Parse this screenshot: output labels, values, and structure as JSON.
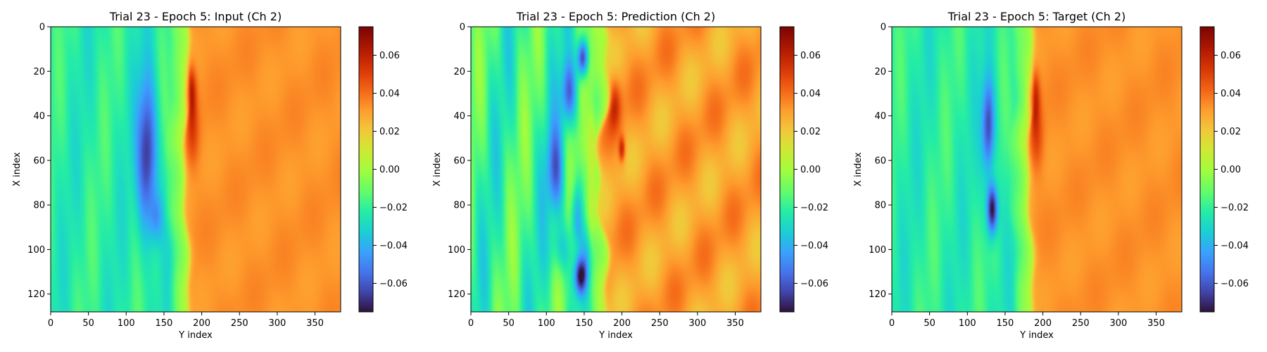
{
  "chart_data": [
    {
      "type": "heatmap",
      "title": "Trial 23 - Epoch 5: Input (Ch 2)",
      "xlabel": "Y index",
      "ylabel": "X index",
      "xlim": [
        0,
        384
      ],
      "ylim": [
        128,
        0
      ],
      "xticks": [
        0,
        50,
        100,
        150,
        200,
        250,
        300,
        350
      ],
      "yticks": [
        0,
        20,
        40,
        60,
        80,
        100,
        120
      ],
      "colormap": "turbo",
      "colorbar": {
        "range": [
          -0.075,
          0.075
        ],
        "ticks": [
          -0.06,
          -0.04,
          -0.02,
          0.0,
          0.02,
          0.04,
          0.06
        ],
        "tick_labels": [
          "−0.06",
          "−0.04",
          "−0.02",
          "0.00",
          "0.02",
          "0.04",
          "0.06"
        ]
      },
      "field": {
        "front_y": 178,
        "front_wobble": 4,
        "left_level": -0.022,
        "left_variation": 0.006,
        "right_level": 0.033,
        "right_variation": 0.002,
        "transition_band": 25,
        "transition_value": 0.005,
        "features": [
          {
            "y": 128,
            "x": 58,
            "sy": 9,
            "sx": 24,
            "value": -0.05
          },
          {
            "y": 140,
            "x": 86,
            "sy": 6,
            "sx": 8,
            "value": -0.02
          },
          {
            "y": 185,
            "x": 30,
            "sy": 5,
            "sx": 8,
            "value": 0.04
          },
          {
            "y": 188,
            "x": 48,
            "sy": 6,
            "sx": 10,
            "value": 0.015
          },
          {
            "y": 165,
            "x": 40,
            "sy": 8,
            "sx": 12,
            "value": 0.008
          }
        ]
      }
    },
    {
      "type": "heatmap",
      "title": "Trial 23 - Epoch 5: Prediction (Ch 2)",
      "xlabel": "Y index",
      "ylabel": "X index",
      "xlim": [
        0,
        384
      ],
      "ylim": [
        128,
        0
      ],
      "xticks": [
        0,
        50,
        100,
        150,
        200,
        250,
        300,
        350
      ],
      "yticks": [
        0,
        20,
        40,
        60,
        80,
        100,
        120
      ],
      "colormap": "turbo",
      "colorbar": {
        "range": [
          -0.075,
          0.075
        ],
        "ticks": [
          -0.06,
          -0.04,
          -0.02,
          0.0,
          0.02,
          0.04,
          0.06
        ],
        "tick_labels": [
          "−0.06",
          "−0.04",
          "−0.02",
          "0.00",
          "0.02",
          "0.04",
          "0.06"
        ]
      },
      "field": {
        "front_y": 172,
        "front_wobble": 8,
        "left_level": -0.018,
        "left_variation": 0.012,
        "right_level": 0.03,
        "right_variation": 0.007,
        "transition_band": 30,
        "transition_value": 0.004,
        "features": [
          {
            "y": 148,
            "x": 14,
            "sy": 5,
            "sx": 6,
            "value": -0.06
          },
          {
            "y": 130,
            "x": 30,
            "sy": 7,
            "sx": 10,
            "value": -0.04
          },
          {
            "y": 112,
            "x": 65,
            "sy": 8,
            "sx": 14,
            "value": -0.035
          },
          {
            "y": 140,
            "x": 85,
            "sy": 6,
            "sx": 10,
            "value": -0.03
          },
          {
            "y": 145,
            "x": 112,
            "sy": 6,
            "sx": 6,
            "value": -0.055
          },
          {
            "y": 120,
            "x": 100,
            "sy": 10,
            "sx": 8,
            "value": -0.02
          },
          {
            "y": 160,
            "x": 60,
            "sy": 3,
            "sx": 30,
            "value": 0.01
          },
          {
            "y": 190,
            "x": 35,
            "sy": 6,
            "sx": 8,
            "value": 0.025
          },
          {
            "y": 200,
            "x": 55,
            "sy": 3,
            "sx": 4,
            "value": 0.03
          }
        ]
      }
    },
    {
      "type": "heatmap",
      "title": "Trial 23 - Epoch 5: Target (Ch 2)",
      "xlabel": "Y index",
      "ylabel": "X index",
      "xlim": [
        0,
        384
      ],
      "ylim": [
        128,
        0
      ],
      "xticks": [
        0,
        50,
        100,
        150,
        200,
        250,
        300,
        350
      ],
      "yticks": [
        0,
        20,
        40,
        60,
        80,
        100,
        120
      ],
      "colormap": "turbo",
      "colorbar": {
        "range": [
          -0.075,
          0.075
        ],
        "ticks": [
          -0.06,
          -0.04,
          -0.02,
          0.0,
          0.02,
          0.04,
          0.06
        ],
        "tick_labels": [
          "−0.06",
          "−0.04",
          "−0.02",
          "0.00",
          "0.02",
          "0.04",
          "0.06"
        ]
      },
      "field": {
        "front_y": 182,
        "front_wobble": 4,
        "left_level": -0.022,
        "left_variation": 0.006,
        "right_level": 0.033,
        "right_variation": 0.002,
        "transition_band": 25,
        "transition_value": 0.005,
        "features": [
          {
            "y": 128,
            "x": 45,
            "sy": 6,
            "sx": 15,
            "value": -0.045
          },
          {
            "y": 133,
            "x": 82,
            "sy": 5,
            "sx": 8,
            "value": -0.06
          },
          {
            "y": 188,
            "x": 32,
            "sy": 5,
            "sx": 8,
            "value": 0.04
          },
          {
            "y": 192,
            "x": 50,
            "sy": 6,
            "sx": 10,
            "value": 0.015
          },
          {
            "y": 168,
            "x": 45,
            "sy": 8,
            "sx": 12,
            "value": 0.008
          }
        ]
      }
    }
  ]
}
